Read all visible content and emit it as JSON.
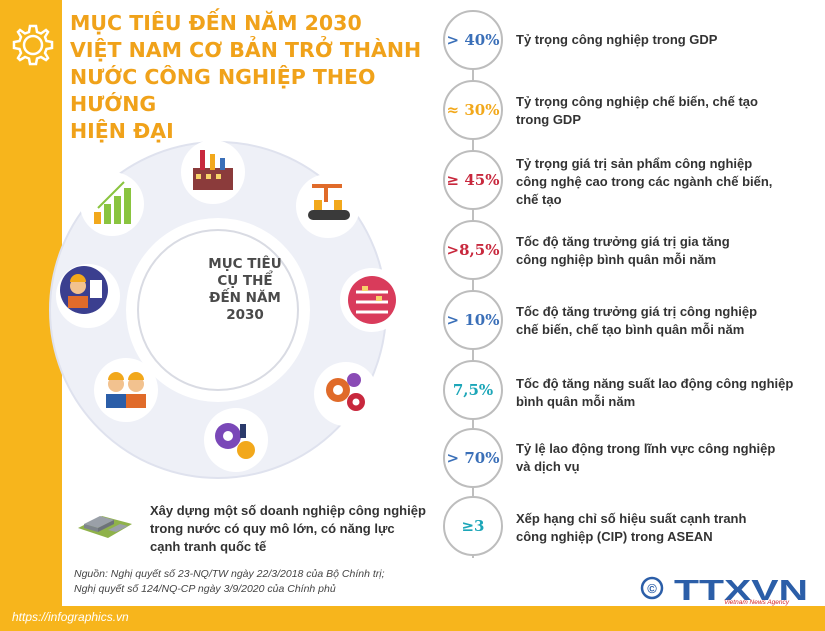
{
  "title": {
    "line1": "MỤC TIÊU ĐẾN NĂM 2030",
    "line2": "VIỆT NAM CƠ BẢN TRỞ THÀNH",
    "line3": "NƯỚC CÔNG NGHIỆP THEO HƯỚNG",
    "line4": "HIỆN ĐẠI"
  },
  "center": {
    "line1": "MỤC TIÊU",
    "line2": "CỤ THỂ",
    "line3": "ĐẾN NĂM",
    "line4": "2030"
  },
  "ring_icons": [
    "factory-icon",
    "conveyor-robot-icon",
    "production-line-icon",
    "gears-icon",
    "engineer-gears-icon",
    "workers-icon",
    "worker-checklist-icon",
    "growth-chart-icon"
  ],
  "colors": {
    "accent_yellow": "#f7b51c",
    "title_orange": "#f0a21a",
    "blue": "#3a6fb8",
    "red": "#c8283d",
    "teal": "#1ca6b8"
  },
  "targets": [
    {
      "value": "> 40%",
      "label_lines": [
        "Tỷ trọng công nghiệp trong GDP"
      ]
    },
    {
      "value": "≈ 30%",
      "label_lines": [
        "Tỷ trọng công nghiệp chế biến, chế tạo",
        "trong GDP"
      ]
    },
    {
      "value": "≥ 45%",
      "label_lines": [
        "Tỷ trọng giá trị sản phẩm công nghiệp",
        "công nghệ cao trong các ngành chế biến,",
        "chế tạo"
      ]
    },
    {
      "value": ">8,5%",
      "label_lines": [
        "Tốc độ tăng trưởng giá trị gia tăng",
        "công nghiệp bình quân mỗi năm"
      ]
    },
    {
      "value": "> 10%",
      "label_lines": [
        "Tốc độ tăng trưởng giá trị công nghiệp",
        "chế biến, chế tạo bình quân mỗi năm"
      ]
    },
    {
      "value": "7,5%",
      "label_lines": [
        "Tốc độ tăng năng suất lao động công nghiệp",
        "bình quân mỗi năm"
      ]
    },
    {
      "value": "> 70%",
      "label_lines": [
        "Tỷ lệ lao động trong lĩnh vực công nghiệp",
        "và dịch vụ"
      ]
    },
    {
      "value": "≥3",
      "label_lines": [
        "Xếp hạng chỉ số hiệu suất cạnh tranh",
        "công nghiệp (CIP) trong ASEAN"
      ]
    }
  ],
  "bottom_item": {
    "line1": "Xây dựng một số doanh nghiệp công nghiệp",
    "line2": "trong nước có quy mô lớn, có năng lực",
    "line3": "cạnh tranh quốc tế"
  },
  "source": {
    "line1": "Nguồn: Nghị quyết số 23-NQ/TW ngày 22/3/2018 của Bộ Chính trị;",
    "line2": "Nghị quyết số 124/NQ-CP ngày 3/9/2020 của Chính phủ"
  },
  "url": "https://infographics.vn",
  "logo": {
    "copyright": "©",
    "name": "TTXVN",
    "subtitle": "Vietnam News Agency"
  }
}
